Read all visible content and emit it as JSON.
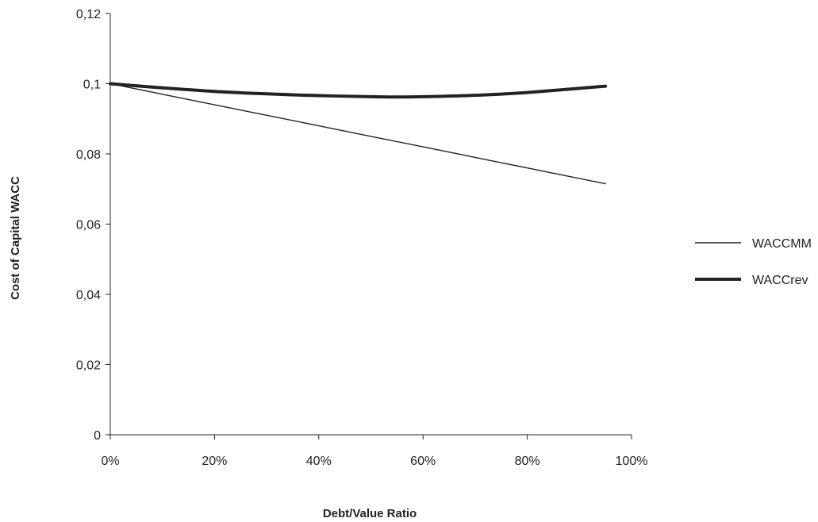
{
  "chart_data": {
    "type": "line",
    "title": "",
    "xlabel": "Debt/Value Ratio",
    "ylabel": "Cost of Capital WACC",
    "xlim": [
      0,
      1
    ],
    "ylim": [
      0,
      0.12
    ],
    "x_ticks": [
      {
        "value": 0,
        "label": "0%"
      },
      {
        "value": 0.2,
        "label": "20%"
      },
      {
        "value": 0.4,
        "label": "40%"
      },
      {
        "value": 0.6,
        "label": "60%"
      },
      {
        "value": 0.8,
        "label": "80%"
      },
      {
        "value": 1.0,
        "label": "100%"
      }
    ],
    "y_ticks": [
      {
        "value": 0,
        "label": "0"
      },
      {
        "value": 0.02,
        "label": "0,02"
      },
      {
        "value": 0.04,
        "label": "0,04"
      },
      {
        "value": 0.06,
        "label": "0,06"
      },
      {
        "value": 0.08,
        "label": "0,08"
      },
      {
        "value": 0.1,
        "label": "0,1"
      },
      {
        "value": 0.12,
        "label": "0,12"
      }
    ],
    "grid": false,
    "legend": "right",
    "x": [
      0,
      0.1,
      0.2,
      0.3,
      0.4,
      0.5,
      0.55,
      0.6,
      0.7,
      0.8,
      0.95
    ],
    "series": [
      {
        "name": "WACCMM",
        "color": "#222222",
        "style": "thin",
        "values": [
          0.1,
          0.097,
          0.094,
          0.091,
          0.088,
          0.085,
          0.0835,
          0.082,
          0.079,
          0.076,
          0.0715
        ]
      },
      {
        "name": "WACCrev",
        "color": "#222222",
        "style": "thick",
        "values": [
          0.1,
          0.0988,
          0.0978,
          0.0971,
          0.0966,
          0.0963,
          0.0962,
          0.0963,
          0.0967,
          0.0975,
          0.0993
        ]
      }
    ]
  }
}
